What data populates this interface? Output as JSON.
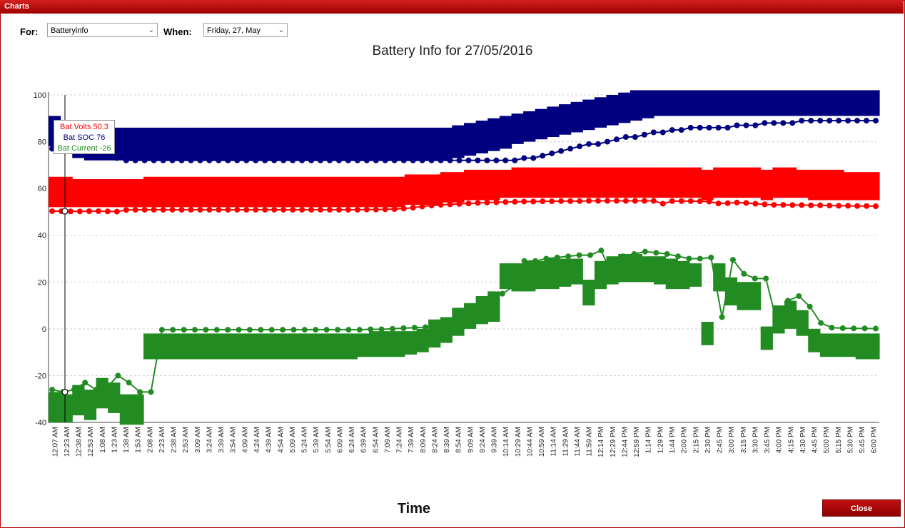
{
  "window": {
    "title": "Charts"
  },
  "controls": {
    "for_label": "For:",
    "for_value": "Batteryinfo",
    "when_label": "When:",
    "when_value": "Friday, 27, May"
  },
  "close_label": "Close",
  "tooltip": {
    "volts": "Bat Volts 50.3",
    "soc": "Bat SOC 76",
    "current": "Bat Current -26"
  },
  "colors": {
    "volts": "#ff0000",
    "soc": "#000080",
    "current": "#228b22",
    "window_accent": "#b00000"
  },
  "chart_data": {
    "type": "line",
    "title": "Battery Info for 27/05/2016",
    "xlabel": "Time",
    "ylabel": "",
    "ylim": [
      -40,
      100
    ],
    "yticks": [
      -40,
      -20,
      0,
      20,
      40,
      60,
      80,
      100
    ],
    "grid": true,
    "xticks": [
      "12:07 AM",
      "12:23 AM",
      "12:38 AM",
      "12:53 AM",
      "1:08 AM",
      "1:23 AM",
      "1:38 AM",
      "1:53 AM",
      "2:08 AM",
      "2:23 AM",
      "2:38 AM",
      "2:53 AM",
      "3:09 AM",
      "3:24 AM",
      "3:39 AM",
      "3:54 AM",
      "4:09 AM",
      "4:24 AM",
      "4:39 AM",
      "4:54 AM",
      "5:09 AM",
      "5:24 AM",
      "5:39 AM",
      "5:54 AM",
      "6:09 AM",
      "6:24 AM",
      "6:39 AM",
      "6:54 AM",
      "7:09 AM",
      "7:24 AM",
      "7:39 AM",
      "8:09 AM",
      "8:24 AM",
      "8:39 AM",
      "8:54 AM",
      "9:09 AM",
      "9:24 AM",
      "9:39 AM",
      "10:14 AM",
      "10:29 AM",
      "10:44 AM",
      "10:59 AM",
      "11:14 AM",
      "11:29 AM",
      "11:44 AM",
      "11:59 AM",
      "12:14 PM",
      "12:29 PM",
      "12:44 PM",
      "12:59 PM",
      "1:14 PM",
      "1:29 PM",
      "1:44 PM",
      "2:00 PM",
      "2:15 PM",
      "2:30 PM",
      "2:45 PM",
      "3:00 PM",
      "3:15 PM",
      "3:30 PM",
      "3:45 PM",
      "4:00 PM",
      "4:15 PM",
      "4:30 PM",
      "4:45 PM",
      "5:00 PM",
      "5:15 PM",
      "5:30 PM",
      "5:45 PM",
      "6:00 PM"
    ],
    "series": [
      {
        "name": "Bat SOC",
        "color": "#000080",
        "values": [
          77,
          76,
          76,
          75,
          75,
          74,
          74,
          73,
          72,
          72,
          72,
          72,
          72,
          72,
          72,
          72,
          72,
          72,
          72,
          72,
          72,
          72,
          72,
          72,
          72,
          72,
          72,
          72,
          72,
          72,
          72,
          72,
          72,
          72,
          72,
          72,
          72,
          72,
          72,
          72,
          72,
          72,
          72,
          72,
          72,
          72,
          72,
          72,
          72,
          72,
          72,
          73,
          73,
          74,
          75,
          76,
          77,
          78,
          79,
          79,
          80,
          81,
          82,
          82,
          83,
          84,
          84,
          85,
          85,
          86,
          86,
          86,
          86,
          86,
          87,
          87,
          87,
          88,
          88,
          88,
          88,
          89,
          89,
          89,
          89,
          89,
          89,
          89,
          89,
          89
        ]
      },
      {
        "name": "Bat Volts",
        "color": "#ff0000",
        "values": [
          50.3,
          50.3,
          50.2,
          50.2,
          50.3,
          50.3,
          50.2,
          50.1,
          50.8,
          50.9,
          50.9,
          50.9,
          50.9,
          50.9,
          50.9,
          50.9,
          50.9,
          50.9,
          50.9,
          50.9,
          50.9,
          50.9,
          50.9,
          50.9,
          50.9,
          50.9,
          50.9,
          50.9,
          50.9,
          50.9,
          50.9,
          50.9,
          50.9,
          50.9,
          51.0,
          51.0,
          51.1,
          51.2,
          51.4,
          51.8,
          52.3,
          52.7,
          53.0,
          53.2,
          53.4,
          53.6,
          53.8,
          54.0,
          54.1,
          54.2,
          54.3,
          54.4,
          54.4,
          54.5,
          54.5,
          54.6,
          54.6,
          54.6,
          54.7,
          54.7,
          54.7,
          54.7,
          54.7,
          54.7,
          54.7,
          54.7,
          53.5,
          54.6,
          54.6,
          54.6,
          54.5,
          54.4,
          53.6,
          53.7,
          54.0,
          53.8,
          53.5,
          53.2,
          53.0,
          53.0,
          52.9,
          52.9,
          52.8,
          52.8,
          52.7,
          52.6,
          52.6,
          52.5,
          52.5,
          52.4
        ]
      },
      {
        "name": "Bat Current",
        "color": "#228b22",
        "values": [
          -26,
          -27,
          -26,
          -23,
          -26,
          -25,
          -20,
          -23,
          -27,
          -27,
          -0.4,
          -0.4,
          -0.4,
          -0.4,
          -0.4,
          -0.4,
          -0.4,
          -0.4,
          -0.4,
          -0.4,
          -0.4,
          -0.4,
          -0.4,
          -0.4,
          -0.4,
          -0.4,
          -0.4,
          -0.4,
          -0.4,
          -0.2,
          -0.2,
          0,
          0.3,
          0.5,
          0.7,
          1.0,
          2,
          6,
          7,
          11,
          14,
          15,
          18,
          29,
          29,
          30,
          30.5,
          31,
          31.5,
          31.5,
          33.5,
          23,
          31,
          32,
          33,
          32.5,
          32,
          31,
          30,
          30,
          30.5,
          5,
          29.5,
          23.5,
          21.5,
          21.5,
          2.8,
          12,
          14,
          9.5,
          2.5,
          0.5,
          0.3,
          0.2,
          0.2,
          0.1
        ]
      }
    ],
    "box_ranges": {
      "soc": [
        [
          78,
          91
        ],
        [
          76,
          88
        ],
        [
          73,
          86
        ],
        [
          72,
          86
        ],
        [
          72,
          86
        ],
        [
          72,
          86
        ],
        [
          72,
          86
        ],
        [
          72,
          86
        ],
        [
          72,
          86
        ],
        [
          72,
          86
        ],
        [
          72,
          86
        ],
        [
          72,
          86
        ],
        [
          72,
          86
        ],
        [
          72,
          86
        ],
        [
          72,
          86
        ],
        [
          72,
          86
        ],
        [
          72,
          86
        ],
        [
          72,
          86
        ],
        [
          72,
          86
        ],
        [
          72,
          86
        ],
        [
          72,
          86
        ],
        [
          72,
          86
        ],
        [
          72,
          86
        ],
        [
          72,
          86
        ],
        [
          72,
          86
        ],
        [
          72,
          86
        ],
        [
          72,
          86
        ],
        [
          72,
          86
        ],
        [
          72,
          86
        ],
        [
          72,
          86
        ],
        [
          72,
          86
        ],
        [
          72,
          86
        ],
        [
          72,
          86
        ],
        [
          72,
          86
        ],
        [
          73,
          87
        ],
        [
          74,
          88
        ],
        [
          75,
          89
        ],
        [
          76,
          90
        ],
        [
          77,
          91
        ],
        [
          79,
          92
        ],
        [
          80,
          93
        ],
        [
          81,
          94
        ],
        [
          82,
          95
        ],
        [
          83,
          96
        ],
        [
          84,
          97
        ],
        [
          85,
          98
        ],
        [
          86,
          99
        ],
        [
          87,
          100
        ],
        [
          88,
          101
        ],
        [
          89,
          102
        ],
        [
          90,
          102
        ],
        [
          91,
          102
        ],
        [
          91,
          102
        ],
        [
          91,
          102
        ],
        [
          91,
          102
        ],
        [
          91,
          102
        ],
        [
          91,
          102
        ],
        [
          91,
          102
        ],
        [
          91,
          102
        ],
        [
          91,
          102
        ],
        [
          91,
          102
        ],
        [
          91,
          102
        ],
        [
          91,
          102
        ],
        [
          91,
          102
        ],
        [
          91,
          102
        ],
        [
          91,
          102
        ],
        [
          91,
          102
        ],
        [
          91,
          102
        ],
        [
          91,
          102
        ],
        [
          91,
          102
        ]
      ],
      "volts": [
        [
          52,
          65
        ],
        [
          52,
          65
        ],
        [
          52,
          64
        ],
        [
          52,
          64
        ],
        [
          52,
          64
        ],
        [
          52,
          64
        ],
        [
          52,
          64
        ],
        [
          52,
          64
        ],
        [
          52,
          65
        ],
        [
          52,
          65
        ],
        [
          52,
          65
        ],
        [
          52,
          65
        ],
        [
          52,
          65
        ],
        [
          52,
          65
        ],
        [
          52,
          65
        ],
        [
          52,
          65
        ],
        [
          52,
          65
        ],
        [
          52,
          65
        ],
        [
          52,
          65
        ],
        [
          52,
          65
        ],
        [
          52,
          65
        ],
        [
          52,
          65
        ],
        [
          52,
          65
        ],
        [
          52,
          65
        ],
        [
          52,
          65
        ],
        [
          52,
          65
        ],
        [
          52,
          65
        ],
        [
          52,
          65
        ],
        [
          52,
          65
        ],
        [
          52,
          65
        ],
        [
          53,
          66
        ],
        [
          53,
          66
        ],
        [
          53,
          66
        ],
        [
          54,
          67
        ],
        [
          54,
          67
        ],
        [
          55,
          68
        ],
        [
          55,
          68
        ],
        [
          55,
          68
        ],
        [
          56,
          68
        ],
        [
          56,
          69
        ],
        [
          56,
          69
        ],
        [
          56,
          69
        ],
        [
          56,
          69
        ],
        [
          56,
          69
        ],
        [
          56,
          69
        ],
        [
          56,
          69
        ],
        [
          56,
          69
        ],
        [
          56,
          69
        ],
        [
          56,
          69
        ],
        [
          56,
          69
        ],
        [
          56,
          69
        ],
        [
          56,
          69
        ],
        [
          56,
          69
        ],
        [
          56,
          69
        ],
        [
          56,
          69
        ],
        [
          55,
          68
        ],
        [
          56,
          69
        ],
        [
          56,
          69
        ],
        [
          56,
          69
        ],
        [
          56,
          69
        ],
        [
          55,
          68
        ],
        [
          56,
          69
        ],
        [
          56,
          69
        ],
        [
          56,
          68
        ],
        [
          55,
          68
        ],
        [
          55,
          68
        ],
        [
          55,
          68
        ],
        [
          55,
          67
        ],
        [
          55,
          67
        ],
        [
          55,
          67
        ]
      ],
      "current": [
        [
          -40,
          -27
        ],
        [
          -40,
          -28
        ],
        [
          -37,
          -24
        ],
        [
          -39,
          -26
        ],
        [
          -34,
          -21
        ],
        [
          -36,
          -23
        ],
        [
          -41,
          -28
        ],
        [
          -41,
          -28
        ],
        [
          -13,
          -2
        ],
        [
          -13,
          -2
        ],
        [
          -13,
          -2
        ],
        [
          -13,
          -2
        ],
        [
          -13,
          -2
        ],
        [
          -13,
          -2
        ],
        [
          -13,
          -2
        ],
        [
          -13,
          -2
        ],
        [
          -13,
          -2
        ],
        [
          -13,
          -2
        ],
        [
          -13,
          -2
        ],
        [
          -13,
          -2
        ],
        [
          -13,
          -2
        ],
        [
          -13,
          -2
        ],
        [
          -13,
          -2
        ],
        [
          -13,
          -2
        ],
        [
          -13,
          -2
        ],
        [
          -13,
          -2
        ],
        [
          -12,
          -2
        ],
        [
          -12,
          -1
        ],
        [
          -12,
          -1
        ],
        [
          -12,
          -1
        ],
        [
          -11,
          -1
        ],
        [
          -10,
          0
        ],
        [
          -8,
          4
        ],
        [
          -6,
          5
        ],
        [
          -3,
          9
        ],
        [
          0,
          11
        ],
        [
          2,
          14
        ],
        [
          3,
          16
        ],
        [
          17,
          28
        ],
        [
          16,
          28
        ],
        [
          16,
          29
        ],
        [
          17,
          29
        ],
        [
          17,
          30
        ],
        [
          18,
          30
        ],
        [
          19,
          30
        ],
        [
          10,
          21
        ],
        [
          17,
          29
        ],
        [
          19,
          31
        ],
        [
          20,
          32
        ],
        [
          20,
          32
        ],
        [
          20,
          31
        ],
        [
          19,
          31
        ],
        [
          17,
          30
        ],
        [
          17,
          29
        ],
        [
          18,
          28
        ],
        [
          -7,
          3
        ],
        [
          16,
          28
        ],
        [
          10,
          22
        ],
        [
          8,
          20
        ],
        [
          8,
          20
        ],
        [
          -9,
          1
        ],
        [
          -2,
          10
        ],
        [
          0,
          12
        ],
        [
          -3,
          8
        ],
        [
          -10,
          0
        ],
        [
          -12,
          -2
        ],
        [
          -12,
          -2
        ],
        [
          -12,
          -2
        ],
        [
          -13,
          -2
        ],
        [
          -13,
          -2
        ]
      ]
    }
  }
}
